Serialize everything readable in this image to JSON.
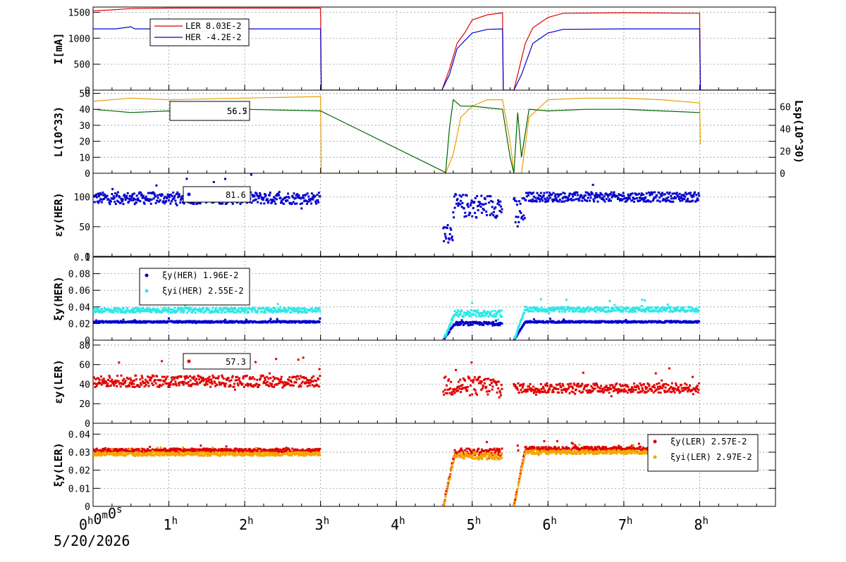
{
  "colors": {
    "LER": "#e00000",
    "HER": "#0000cc",
    "dark_green": "#006400",
    "orange": "#e8a000",
    "cyan": "#2ee8e8",
    "orange2": "#f5a500",
    "red": "#e00000"
  },
  "date": "5/20/2026",
  "chart_data": [
    {
      "id": "current",
      "type": "line",
      "ylabel": "I[mA]",
      "ylim": [
        0,
        1600
      ],
      "yticks": [
        0,
        500,
        1000,
        1500
      ],
      "legend": [
        {
          "name": "LER",
          "value": "8.03E-2",
          "color": "#e00000",
          "marker": "line"
        },
        {
          "name": "HER",
          "value": "-4.2E-2",
          "color": "#0000cc",
          "marker": "line"
        }
      ],
      "series": [
        {
          "name": "LER",
          "color": "#e00000",
          "points": [
            [
              0,
              1530
            ],
            [
              0.2,
              1540
            ],
            [
              0.5,
              1570
            ],
            [
              1.0,
              1580
            ],
            [
              2.0,
              1580
            ],
            [
              3.0,
              1580
            ],
            [
              3.01,
              0
            ],
            [
              4.6,
              0
            ],
            [
              4.7,
              400
            ],
            [
              4.8,
              900
            ],
            [
              4.9,
              1100
            ],
            [
              5.0,
              1350
            ],
            [
              5.2,
              1450
            ],
            [
              5.4,
              1490
            ],
            [
              5.41,
              0
            ],
            [
              5.55,
              0
            ],
            [
              5.6,
              300
            ],
            [
              5.7,
              900
            ],
            [
              5.8,
              1200
            ],
            [
              6.0,
              1400
            ],
            [
              6.2,
              1480
            ],
            [
              7.0,
              1490
            ],
            [
              8.0,
              1480
            ],
            [
              8.01,
              0
            ],
            [
              9.0,
              0
            ]
          ]
        },
        {
          "name": "HER",
          "color": "#0000cc",
          "points": [
            [
              0,
              1180
            ],
            [
              0.3,
              1180
            ],
            [
              0.5,
              1220
            ],
            [
              0.55,
              1180
            ],
            [
              1.0,
              1180
            ],
            [
              2.0,
              1180
            ],
            [
              3.0,
              1180
            ],
            [
              3.01,
              0
            ],
            [
              4.6,
              0
            ],
            [
              4.7,
              300
            ],
            [
              4.8,
              800
            ],
            [
              4.9,
              950
            ],
            [
              5.0,
              1100
            ],
            [
              5.2,
              1170
            ],
            [
              5.4,
              1180
            ],
            [
              5.41,
              0
            ],
            [
              5.55,
              0
            ],
            [
              5.65,
              300
            ],
            [
              5.8,
              900
            ],
            [
              6.0,
              1100
            ],
            [
              6.2,
              1170
            ],
            [
              7.0,
              1180
            ],
            [
              8.0,
              1180
            ],
            [
              8.01,
              0
            ],
            [
              9.0,
              0
            ]
          ]
        }
      ]
    },
    {
      "id": "luminosity",
      "type": "line",
      "ylabel": "L(10^33)",
      "ylabel2": "Lsp(10^30)",
      "ylim": [
        0,
        52
      ],
      "yticks": [
        0,
        10,
        20,
        30,
        40,
        50
      ],
      "y2ticks": [
        0,
        20,
        40,
        60
      ],
      "legend_values": [
        "56.5",
        "56.7"
      ],
      "series": [
        {
          "name": "L",
          "color": "#e8a000",
          "points": [
            [
              0,
              45
            ],
            [
              0.5,
              47
            ],
            [
              1.0,
              46
            ],
            [
              2.0,
              47
            ],
            [
              3.0,
              48
            ],
            [
              3.01,
              0
            ],
            [
              4.65,
              0
            ],
            [
              4.75,
              12
            ],
            [
              4.85,
              35
            ],
            [
              5.0,
              42
            ],
            [
              5.2,
              46
            ],
            [
              5.4,
              46
            ],
            [
              5.5,
              20
            ],
            [
              5.55,
              0
            ],
            [
              5.65,
              0
            ],
            [
              5.75,
              35
            ],
            [
              6.0,
              46
            ],
            [
              6.5,
              47
            ],
            [
              7.0,
              47
            ],
            [
              7.5,
              46
            ],
            [
              8.0,
              44
            ],
            [
              8.01,
              18
            ]
          ]
        },
        {
          "name": "Lsp",
          "color": "#006400",
          "points": [
            [
              0,
              40
            ],
            [
              0.5,
              38
            ],
            [
              1.0,
              39
            ],
            [
              2.0,
              40
            ],
            [
              3.0,
              39
            ],
            [
              4.65,
              0.5
            ],
            [
              4.7,
              28
            ],
            [
              4.75,
              46
            ],
            [
              4.85,
              42
            ],
            [
              5.0,
              42
            ],
            [
              5.2,
              41
            ],
            [
              5.4,
              40
            ],
            [
              5.5,
              10
            ],
            [
              5.55,
              0
            ],
            [
              5.6,
              38
            ],
            [
              5.65,
              10
            ],
            [
              5.75,
              40
            ],
            [
              6.0,
              39
            ],
            [
              6.5,
              40
            ],
            [
              7.0,
              40
            ],
            [
              7.5,
              39
            ],
            [
              8.0,
              38
            ]
          ]
        }
      ]
    },
    {
      "id": "emit_her",
      "type": "scatter",
      "ylabel": "εy(HER)",
      "ylim": [
        0,
        140
      ],
      "yticks": [
        0,
        50,
        100
      ],
      "legend_value": "81.6",
      "series": [
        {
          "name": "HER",
          "color": "#0000cc",
          "segments": [
            [
              0,
              3.0,
              98,
              10
            ],
            [
              4.62,
              4.75,
              40,
              15
            ],
            [
              4.75,
              5.4,
              85,
              20
            ],
            [
              5.55,
              5.7,
              70,
              30
            ],
            [
              5.7,
              8.0,
              100,
              8
            ]
          ]
        }
      ]
    },
    {
      "id": "tune_her",
      "type": "scatter",
      "ylabel": "ξy(HER)",
      "ylim": [
        0,
        0.1
      ],
      "yticks": [
        0,
        0.02,
        0.04,
        0.06,
        0.08,
        0.1
      ],
      "legend": [
        {
          "name": "ξy(HER)",
          "value": "1.96E-2",
          "color": "#0000cc",
          "marker": "dot"
        },
        {
          "name": "ξyi(HER)",
          "value": "2.55E-2",
          "color": "#2ee8e8",
          "marker": "dot"
        }
      ],
      "series": [
        {
          "name": "ξy(HER)",
          "color": "#0000cc",
          "segments": [
            [
              0,
              3.0,
              0.022,
              0.001
            ],
            [
              4.62,
              5.4,
              0.02,
              0.002
            ],
            [
              5.55,
              8.0,
              0.022,
              0.001
            ]
          ]
        },
        {
          "name": "ξyi(HER)",
          "color": "#2ee8e8",
          "segments": [
            [
              0,
              3.0,
              0.036,
              0.003
            ],
            [
              4.62,
              5.4,
              0.032,
              0.004
            ],
            [
              5.55,
              8.0,
              0.037,
              0.003
            ]
          ]
        }
      ]
    },
    {
      "id": "emit_ler",
      "type": "scatter",
      "ylabel": "εy(LER)",
      "ylim": [
        0,
        85
      ],
      "yticks": [
        0,
        20,
        40,
        60,
        80
      ],
      "legend_value": "57.3",
      "series": [
        {
          "name": "LER",
          "color": "#e00000",
          "segments": [
            [
              0,
              3.0,
              43,
              6
            ],
            [
              4.62,
              5.4,
              38,
              10
            ],
            [
              5.55,
              8.0,
              36,
              5
            ]
          ]
        }
      ]
    },
    {
      "id": "tune_ler",
      "type": "scatter",
      "ylabel": "ξy(LER)",
      "ylim": [
        0,
        0.046
      ],
      "yticks": [
        0,
        0.01,
        0.02,
        0.03,
        0.04
      ],
      "legend": [
        {
          "name": "ξy(LER)",
          "value": "2.57E-2",
          "color": "#e00000",
          "marker": "dot"
        },
        {
          "name": "ξyi(LER)",
          "value": "2.97E-2",
          "color": "#f5a500",
          "marker": "dot"
        }
      ],
      "series": [
        {
          "name": "ξy(LER)",
          "color": "#e00000",
          "segments": [
            [
              0,
              3.0,
              0.031,
              0.001
            ],
            [
              4.62,
              5.4,
              0.03,
              0.002
            ],
            [
              5.55,
              8.0,
              0.032,
              0.001
            ]
          ]
        },
        {
          "name": "ξyi(LER)",
          "color": "#f5a500",
          "segments": [
            [
              0,
              3.0,
              0.029,
              0.001
            ],
            [
              4.62,
              5.4,
              0.028,
              0.002
            ],
            [
              5.55,
              8.0,
              0.03,
              0.001
            ]
          ]
        }
      ]
    }
  ],
  "x_axis": {
    "xlim": [
      0,
      9
    ],
    "ticks": [
      {
        "value": 0,
        "label": "0h0m0s"
      },
      {
        "value": 1,
        "label": "1h"
      },
      {
        "value": 2,
        "label": "2h"
      },
      {
        "value": 3,
        "label": "3h"
      },
      {
        "value": 4,
        "label": "4h"
      },
      {
        "value": 5,
        "label": "5h"
      },
      {
        "value": 6,
        "label": "6h"
      },
      {
        "value": 7,
        "label": "7h"
      },
      {
        "value": 8,
        "label": "8h"
      }
    ]
  }
}
